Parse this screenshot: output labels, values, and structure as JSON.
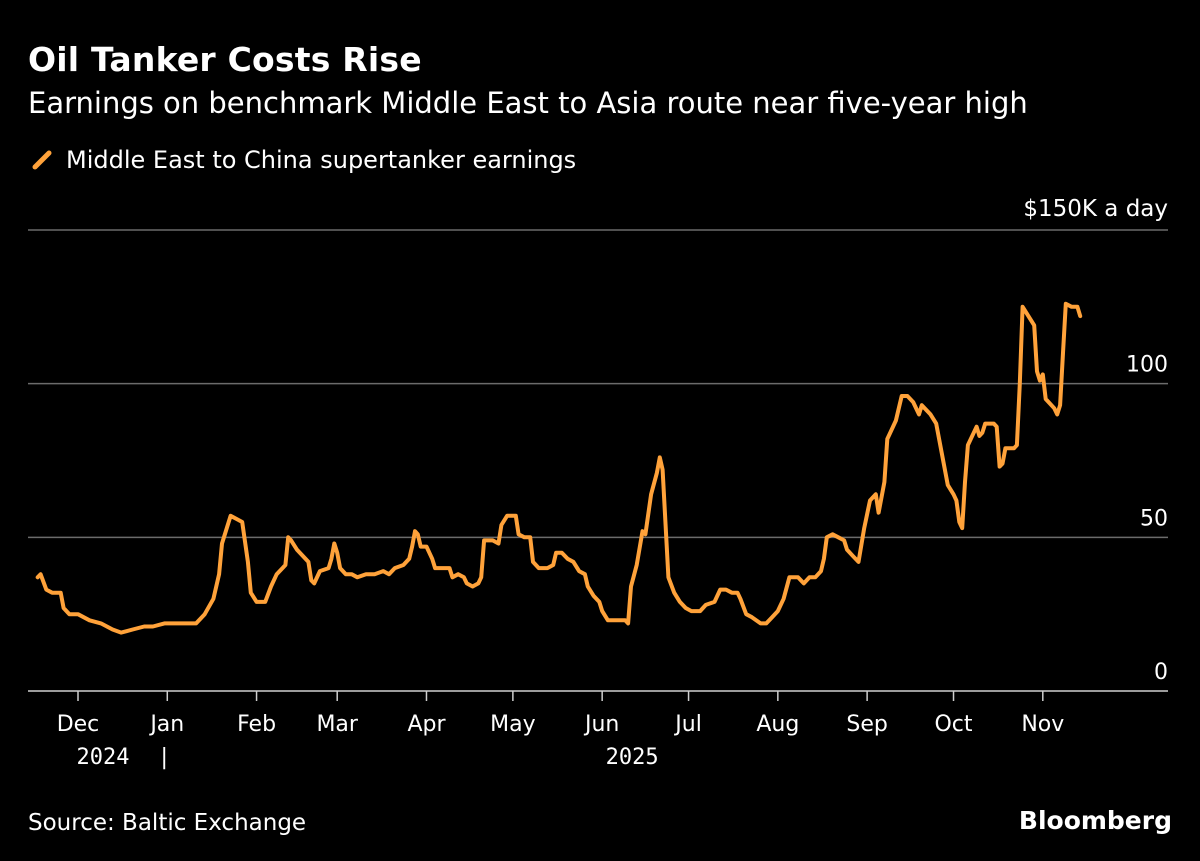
{
  "header": {
    "title": "Oil Tanker Costs Rise",
    "subtitle": "Earnings on benchmark Middle East to Asia route near five-year high"
  },
  "footer": {
    "source": "Source: Baltic Exchange",
    "brand": "Bloomberg"
  },
  "chart_data": {
    "type": "line",
    "title": "Oil Tanker Costs Rise",
    "subtitle": "Earnings on benchmark Middle East to Asia route near five-year high",
    "unit_label": "$150K a day",
    "ylim": [
      0,
      150
    ],
    "y_ticks": [
      {
        "value": 0,
        "label": "0"
      },
      {
        "value": 50,
        "label": "50"
      },
      {
        "value": 100,
        "label": "100"
      },
      {
        "value": 150,
        "label": "$150K a day"
      }
    ],
    "grid": true,
    "legend_position": "top-left",
    "x_months": [
      "Dec",
      "Jan",
      "Feb",
      "Mar",
      "Apr",
      "May",
      "Jun",
      "Jul",
      "Aug",
      "Sep",
      "Oct",
      "Nov"
    ],
    "x_years": [
      {
        "label": "2024",
        "at_month": "Dec"
      },
      {
        "label": "2025",
        "at_month": "Jun"
      }
    ],
    "year_separator": "|",
    "x_day_range": [
      -17,
      400
    ],
    "colors": {
      "line": "#ffa23a",
      "grid": "#6b6b6b",
      "axis": "#cfcfcf",
      "text": "#ffffff",
      "background": "#000000"
    },
    "series": [
      {
        "name": "Middle East to China supertanker earnings",
        "points": [
          [
            -14,
            37
          ],
          [
            -13,
            38
          ],
          [
            -11,
            33
          ],
          [
            -9,
            32
          ],
          [
            -6,
            32
          ],
          [
            -5,
            27
          ],
          [
            -3,
            25
          ],
          [
            0,
            25
          ],
          [
            4,
            23
          ],
          [
            8,
            22
          ],
          [
            12,
            20
          ],
          [
            15,
            19
          ],
          [
            19,
            20
          ],
          [
            23,
            21
          ],
          [
            26,
            21
          ],
          [
            30,
            22
          ],
          [
            35,
            22
          ],
          [
            38,
            22
          ],
          [
            41,
            22
          ],
          [
            44,
            25
          ],
          [
            47,
            30
          ],
          [
            49,
            38
          ],
          [
            50,
            48
          ],
          [
            53,
            57
          ],
          [
            55,
            56
          ],
          [
            57,
            55
          ],
          [
            59,
            42
          ],
          [
            60,
            32
          ],
          [
            62,
            29
          ],
          [
            65,
            29
          ],
          [
            67,
            34
          ],
          [
            69,
            38
          ],
          [
            71,
            40
          ],
          [
            72,
            41
          ],
          [
            73,
            50
          ],
          [
            74,
            49
          ],
          [
            76,
            46
          ],
          [
            80,
            42
          ],
          [
            81,
            36
          ],
          [
            82,
            35
          ],
          [
            84,
            39
          ],
          [
            87,
            40
          ],
          [
            88,
            43
          ],
          [
            89,
            48
          ],
          [
            90,
            45
          ],
          [
            91,
            40
          ],
          [
            93,
            38
          ],
          [
            95,
            38
          ],
          [
            97,
            37
          ],
          [
            100,
            38
          ],
          [
            103,
            38
          ],
          [
            106,
            39
          ],
          [
            108,
            38
          ],
          [
            110,
            40
          ],
          [
            113,
            41
          ],
          [
            115,
            43
          ],
          [
            116,
            47
          ],
          [
            117,
            52
          ],
          [
            118,
            51
          ],
          [
            119,
            47
          ],
          [
            121,
            47
          ],
          [
            123,
            43
          ],
          [
            124,
            40
          ],
          [
            126,
            40
          ],
          [
            129,
            40
          ],
          [
            130,
            37
          ],
          [
            132,
            38
          ],
          [
            134,
            37
          ],
          [
            135,
            35
          ],
          [
            137,
            34
          ],
          [
            139,
            35
          ],
          [
            140,
            37
          ],
          [
            141,
            49
          ],
          [
            144,
            49
          ],
          [
            146,
            48
          ],
          [
            147,
            54
          ],
          [
            149,
            57
          ],
          [
            152,
            57
          ],
          [
            153,
            51
          ],
          [
            155,
            50
          ],
          [
            157,
            50
          ],
          [
            158,
            42
          ],
          [
            160,
            40
          ],
          [
            163,
            40
          ],
          [
            165,
            41
          ],
          [
            166,
            45
          ],
          [
            168,
            45
          ],
          [
            170,
            43
          ],
          [
            172,
            42
          ],
          [
            174,
            39
          ],
          [
            176,
            38
          ],
          [
            177,
            34
          ],
          [
            179,
            31
          ],
          [
            181,
            29
          ],
          [
            182,
            26
          ],
          [
            184,
            23
          ],
          [
            186,
            23
          ],
          [
            188,
            23
          ],
          [
            190,
            23
          ],
          [
            191,
            22
          ],
          [
            192,
            34
          ],
          [
            194,
            41
          ],
          [
            196,
            52
          ],
          [
            197,
            51
          ],
          [
            199,
            64
          ],
          [
            201,
            71
          ],
          [
            202,
            76
          ],
          [
            203,
            72
          ],
          [
            205,
            37
          ],
          [
            207,
            32
          ],
          [
            209,
            29
          ],
          [
            211,
            27
          ],
          [
            213,
            26
          ],
          [
            216,
            26
          ],
          [
            218,
            28
          ],
          [
            221,
            29
          ],
          [
            223,
            33
          ],
          [
            225,
            33
          ],
          [
            227,
            32
          ],
          [
            229,
            32
          ],
          [
            230,
            30
          ],
          [
            232,
            25
          ],
          [
            234,
            24
          ],
          [
            237,
            22
          ],
          [
            239,
            22
          ],
          [
            241,
            24
          ],
          [
            243,
            26
          ],
          [
            245,
            30
          ],
          [
            247,
            37
          ],
          [
            250,
            37
          ],
          [
            252,
            35
          ],
          [
            254,
            37
          ],
          [
            256,
            37
          ],
          [
            258,
            39
          ],
          [
            259,
            43
          ],
          [
            260,
            50
          ],
          [
            262,
            51
          ],
          [
            264,
            50
          ],
          [
            266,
            49
          ],
          [
            267,
            46
          ],
          [
            269,
            44
          ],
          [
            271,
            42
          ],
          [
            273,
            53
          ],
          [
            275,
            62
          ],
          [
            277,
            64
          ],
          [
            278,
            58
          ],
          [
            280,
            68
          ],
          [
            281,
            82
          ],
          [
            284,
            88
          ],
          [
            286,
            96
          ],
          [
            288,
            96
          ],
          [
            290,
            94
          ],
          [
            292,
            90
          ],
          [
            293,
            93
          ],
          [
            296,
            90
          ],
          [
            298,
            87
          ],
          [
            300,
            77
          ],
          [
            302,
            67
          ],
          [
            304,
            64
          ],
          [
            305,
            62
          ],
          [
            306,
            55
          ],
          [
            307,
            53
          ],
          [
            308,
            68
          ],
          [
            309,
            80
          ],
          [
            311,
            84
          ],
          [
            312,
            86
          ],
          [
            313,
            83
          ],
          [
            314,
            84
          ],
          [
            315,
            87
          ],
          [
            318,
            87
          ],
          [
            319,
            86
          ],
          [
            320,
            73
          ],
          [
            321,
            74
          ],
          [
            322,
            79
          ],
          [
            325,
            79
          ],
          [
            326,
            80
          ],
          [
            327,
            100
          ],
          [
            328,
            125
          ],
          [
            330,
            122
          ],
          [
            332,
            119
          ],
          [
            333,
            104
          ],
          [
            334,
            101
          ],
          [
            335,
            103
          ],
          [
            336,
            95
          ],
          [
            337,
            94
          ],
          [
            339,
            92
          ],
          [
            340,
            90
          ],
          [
            341,
            93
          ],
          [
            342,
            110
          ],
          [
            343,
            126
          ],
          [
            345,
            125
          ],
          [
            347,
            125
          ],
          [
            348,
            122
          ]
        ]
      }
    ]
  }
}
